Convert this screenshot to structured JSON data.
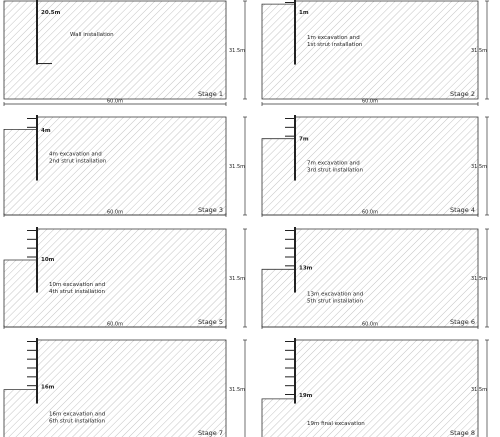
{
  "width_label": "60.0m",
  "height_label": "31.5m",
  "stages": [
    {
      "stage": "Stage 1",
      "depth": "20.5m",
      "line1": "Wall installation",
      "line2": "",
      "excavation": 0,
      "struts": 0
    },
    {
      "stage": "Stage 2",
      "depth": "1m",
      "line1": "1m excavation and",
      "line2": "1st strut installation",
      "excavation": 1,
      "struts": 1
    },
    {
      "stage": "Stage 3",
      "depth": "4m",
      "line1": "4m excavation and",
      "line2": "2nd strut installation",
      "excavation": 4,
      "struts": 2
    },
    {
      "stage": "Stage 4",
      "depth": "7m",
      "line1": "7m excavation and",
      "line2": "3rd strut installation",
      "excavation": 7,
      "struts": 3
    },
    {
      "stage": "Stage 5",
      "depth": "10m",
      "line1": "10m excavation and",
      "line2": "4th strut installation",
      "excavation": 10,
      "struts": 4
    },
    {
      "stage": "Stage 6",
      "depth": "13m",
      "line1": "13m excavation and",
      "line2": "5th strut installation",
      "excavation": 13,
      "struts": 5
    },
    {
      "stage": "Stage 7",
      "depth": "16m",
      "line1": "16m excavation and",
      "line2": "6th strut installation",
      "excavation": 16,
      "struts": 6
    },
    {
      "stage": "Stage 8",
      "depth": "19m",
      "line1": "19m final excavation",
      "line2": "",
      "excavation": 19,
      "struts": 7
    }
  ],
  "colors": {
    "line": "#333333",
    "hatch": "#b5b5b5",
    "wall": "#222222"
  }
}
